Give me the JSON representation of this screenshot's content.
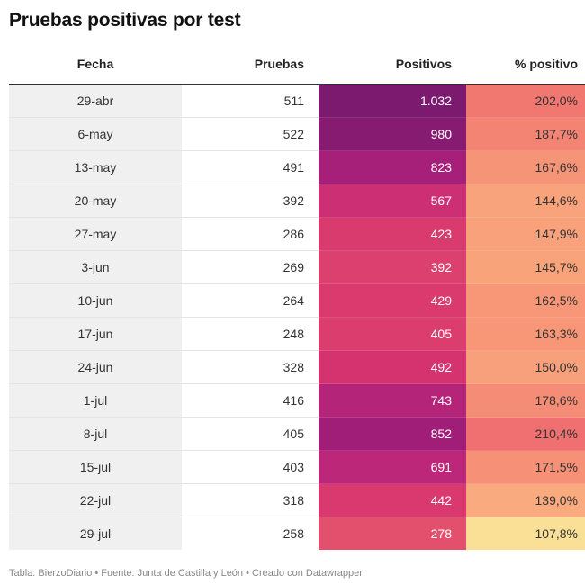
{
  "title": "Pruebas positivas por test",
  "footer": "Tabla: BierzoDiario • Fuente: Junta de Castilla y León • Creado con Datawrapper",
  "chart_data": {
    "type": "table",
    "title": "Pruebas positivas por test",
    "columns": [
      "Fecha",
      "Pruebas",
      "Positivos",
      "% positivo"
    ],
    "rows": [
      {
        "fecha": "29-abr",
        "pruebas": "511",
        "positivos": "1.032",
        "pct": "202,0%",
        "pos_val": 1032,
        "pct_val": 202.0
      },
      {
        "fecha": "6-may",
        "pruebas": "522",
        "positivos": "980",
        "pct": "187,7%",
        "pos_val": 980,
        "pct_val": 187.7
      },
      {
        "fecha": "13-may",
        "pruebas": "491",
        "positivos": "823",
        "pct": "167,6%",
        "pos_val": 823,
        "pct_val": 167.6
      },
      {
        "fecha": "20-may",
        "pruebas": "392",
        "positivos": "567",
        "pct": "144,6%",
        "pos_val": 567,
        "pct_val": 144.6
      },
      {
        "fecha": "27-may",
        "pruebas": "286",
        "positivos": "423",
        "pct": "147,9%",
        "pos_val": 423,
        "pct_val": 147.9
      },
      {
        "fecha": "3-jun",
        "pruebas": "269",
        "positivos": "392",
        "pct": "145,7%",
        "pos_val": 392,
        "pct_val": 145.7
      },
      {
        "fecha": "10-jun",
        "pruebas": "264",
        "positivos": "429",
        "pct": "162,5%",
        "pos_val": 429,
        "pct_val": 162.5
      },
      {
        "fecha": "17-jun",
        "pruebas": "248",
        "positivos": "405",
        "pct": "163,3%",
        "pos_val": 405,
        "pct_val": 163.3
      },
      {
        "fecha": "24-jun",
        "pruebas": "328",
        "positivos": "492",
        "pct": "150,0%",
        "pos_val": 492,
        "pct_val": 150.0
      },
      {
        "fecha": "1-jul",
        "pruebas": "416",
        "positivos": "743",
        "pct": "178,6%",
        "pos_val": 743,
        "pct_val": 178.6
      },
      {
        "fecha": "8-jul",
        "pruebas": "405",
        "positivos": "852",
        "pct": "210,4%",
        "pos_val": 852,
        "pct_val": 210.4
      },
      {
        "fecha": "15-jul",
        "pruebas": "403",
        "positivos": "691",
        "pct": "171,5%",
        "pos_val": 691,
        "pct_val": 171.5
      },
      {
        "fecha": "22-jul",
        "pruebas": "318",
        "positivos": "442",
        "pct": "139,0%",
        "pos_val": 442,
        "pct_val": 139.0
      },
      {
        "fecha": "29-jul",
        "pruebas": "258",
        "positivos": "278",
        "pct": "107,8%",
        "pos_val": 278,
        "pct_val": 107.8
      }
    ],
    "scales": {
      "positivos": {
        "min": 278,
        "max": 1032,
        "colors": [
          "#e2506e",
          "#d8356e",
          "#c2297a",
          "#a31e78",
          "#7b1a6e"
        ]
      },
      "pct": {
        "min": 107.8,
        "max": 210.4,
        "colors": [
          "#fadf96",
          "#f9a57c",
          "#f58e76",
          "#f06f70"
        ]
      }
    }
  }
}
